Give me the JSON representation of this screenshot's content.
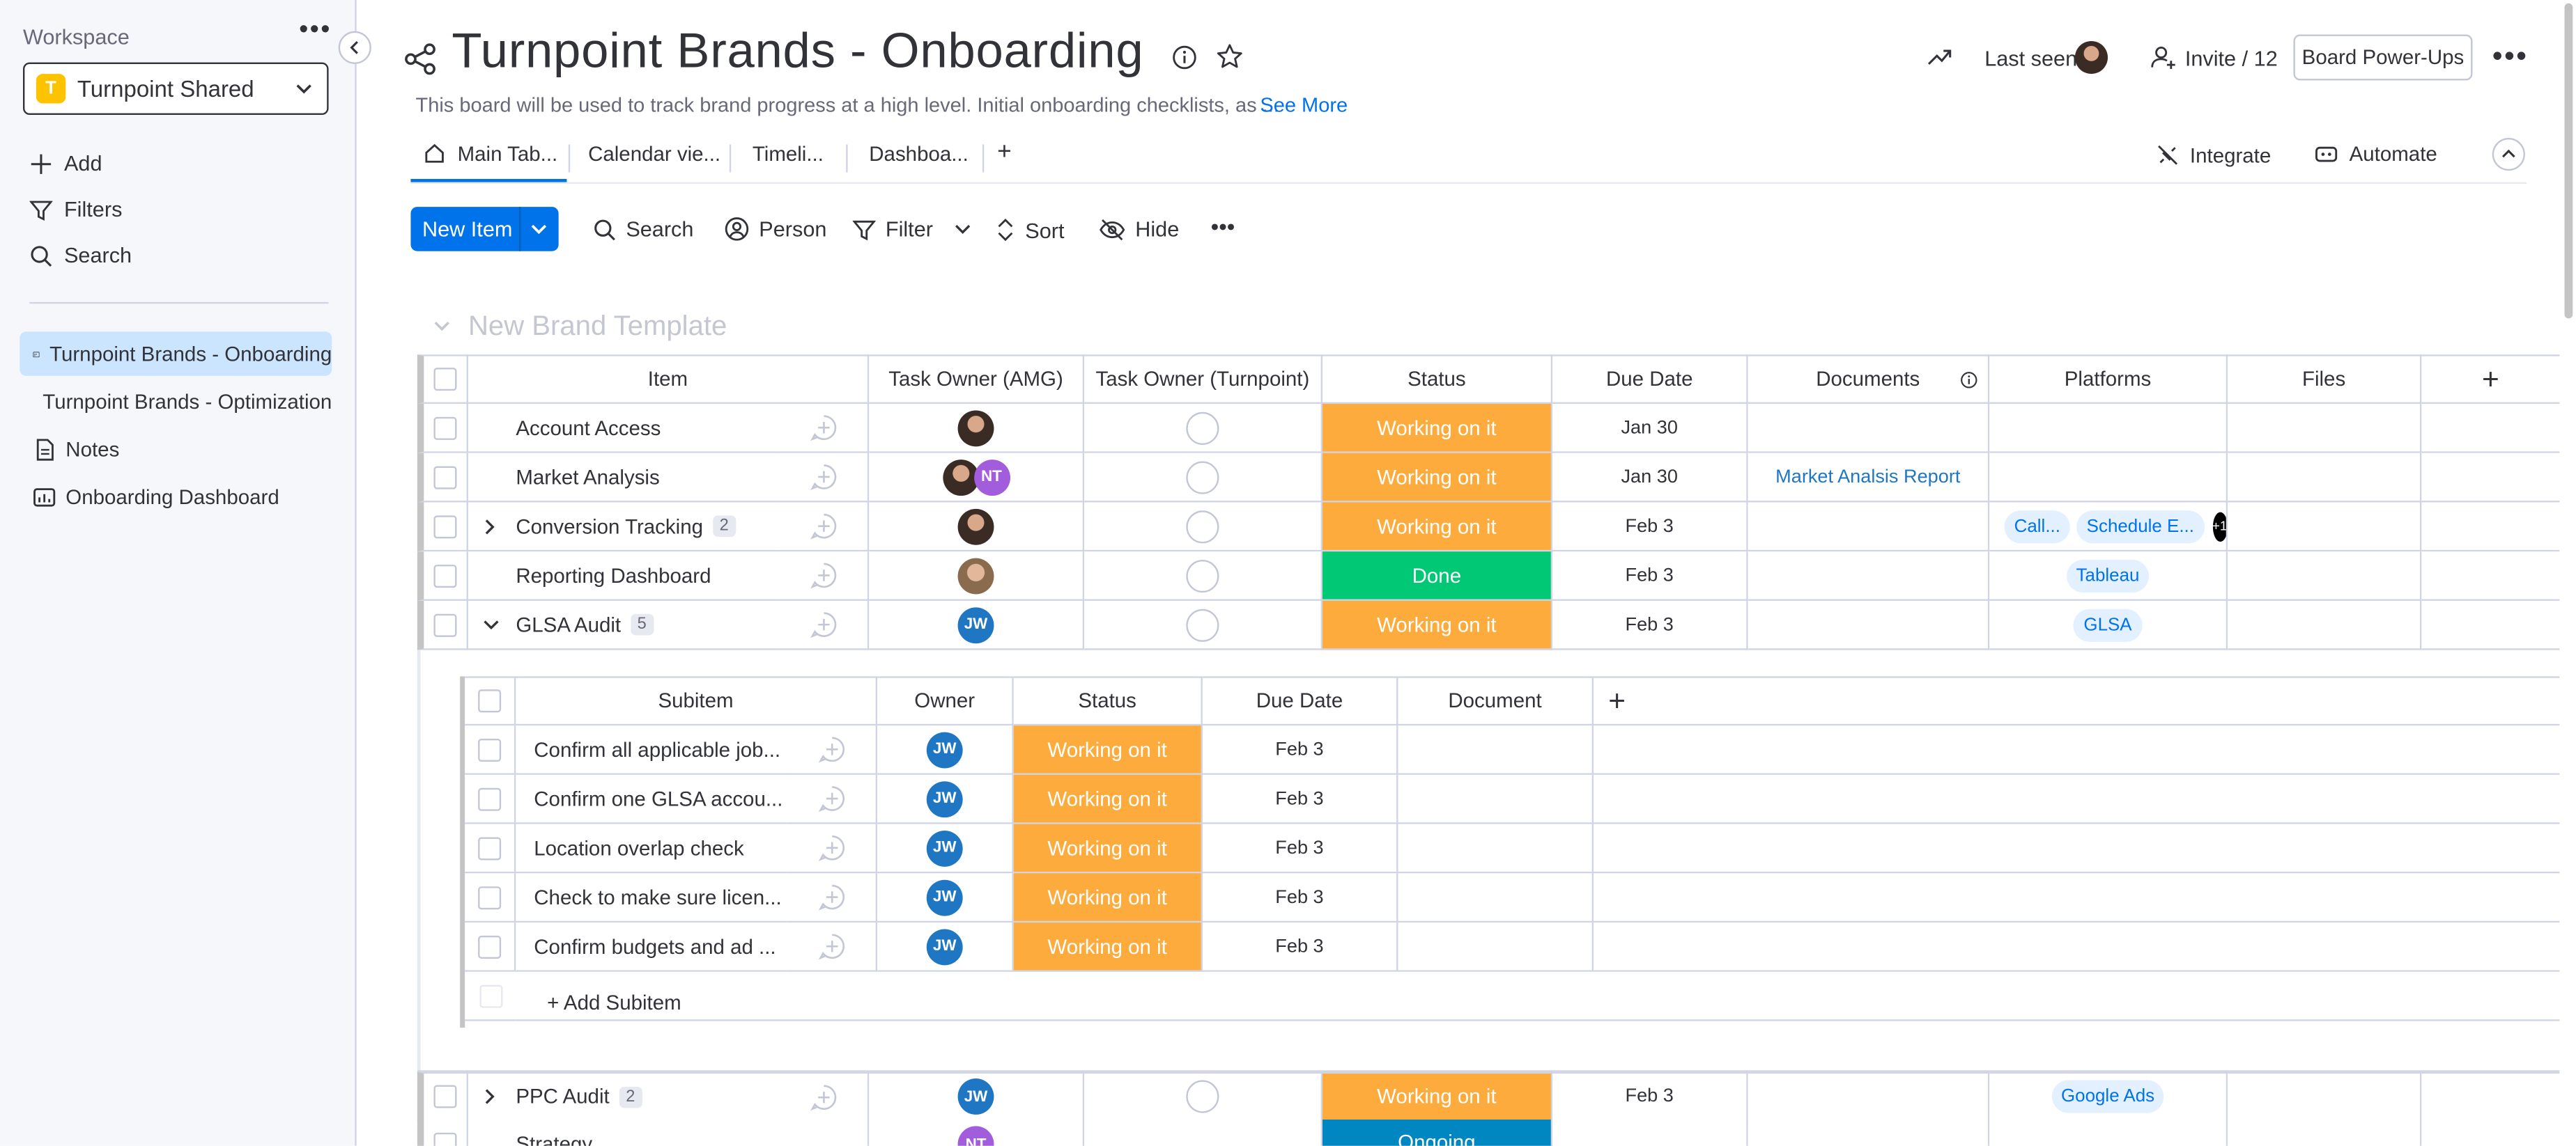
{
  "sidebar": {
    "workspace_label": "Workspace",
    "workspace_initial": "T",
    "workspace_name": "Turnpoint Shared",
    "actions": [
      {
        "label": "Add",
        "icon": "plus-icon"
      },
      {
        "label": "Filters",
        "icon": "filter-icon"
      },
      {
        "label": "Search",
        "icon": "search-icon"
      }
    ],
    "items": [
      {
        "label": "Turnpoint Brands - Onboarding",
        "icon": "board-icon",
        "active": true
      },
      {
        "label": "Turnpoint Brands - Optimization",
        "icon": "board-icon",
        "active": false
      },
      {
        "label": "Notes",
        "icon": "doc-icon",
        "active": false
      },
      {
        "label": "Onboarding Dashboard",
        "icon": "dashboard-icon",
        "active": false
      }
    ]
  },
  "header": {
    "title": "Turnpoint Brands - Onboarding",
    "description": "This board will be used to track brand progress at a high level. Initial onboarding checklists, as ...",
    "see_more": "See More",
    "last_seen": "Last seen",
    "invite": "Invite / 12",
    "power_ups": "Board Power-Ups"
  },
  "tabs": [
    {
      "label": "Main Tab..."
    },
    {
      "label": "Calendar vie..."
    },
    {
      "label": "Timeli..."
    },
    {
      "label": "Dashboa..."
    }
  ],
  "tab_add": "+",
  "integrate": "Integrate",
  "automate": "Automate",
  "toolbar": {
    "new_item": "New Item",
    "search": "Search",
    "person": "Person",
    "filter": "Filter",
    "sort": "Sort",
    "hide": "Hide"
  },
  "group": {
    "title": "New Brand Template",
    "columns": [
      "Item",
      "Task Owner (AMG)",
      "Task Owner (Turnpoint)",
      "Status",
      "Due Date",
      "Documents",
      "Platforms",
      "Files"
    ],
    "rows": [
      {
        "item": "Account Access",
        "owner": "photo",
        "status": "Working on it",
        "status_color": "#fdab3d",
        "due": "Jan 30",
        "document": "",
        "platforms": [],
        "expand": "",
        "count": ""
      },
      {
        "item": "Market Analysis",
        "owner": "photo+NT",
        "owner_initials": "NT",
        "status": "Working on it",
        "status_color": "#fdab3d",
        "due": "Jan 30",
        "document": "Market Analsis Report",
        "platforms": [],
        "expand": "",
        "count": ""
      },
      {
        "item": "Conversion Tracking",
        "owner": "photo",
        "status": "Working on it",
        "status_color": "#fdab3d",
        "due": "Feb 3",
        "document": "",
        "platforms": [
          "Call...",
          "Schedule E..."
        ],
        "platforms_more": "+1",
        "expand": "right",
        "count": "2"
      },
      {
        "item": "Reporting Dashboard",
        "owner": "photo2",
        "status": "Done",
        "status_color": "#00c875",
        "due": "Feb 3",
        "document": "",
        "platforms": [
          "Tableau"
        ],
        "expand": "",
        "count": ""
      },
      {
        "item": "GLSA Audit",
        "owner": "JW",
        "owner_initials": "JW",
        "status": "Working on it",
        "status_color": "#fdab3d",
        "due": "Feb 3",
        "document": "",
        "platforms": [
          "GLSA"
        ],
        "expand": "down",
        "count": "5"
      }
    ]
  },
  "subitems": {
    "columns": [
      "Subitem",
      "Owner",
      "Status",
      "Due Date",
      "Document"
    ],
    "rows": [
      {
        "name": "Confirm all applicable job...",
        "owner": "JW",
        "status": "Working on it",
        "due": "Feb 3"
      },
      {
        "name": "Confirm one GLSA accou...",
        "owner": "JW",
        "status": "Working on it",
        "due": "Feb 3"
      },
      {
        "name": "Location overlap check",
        "owner": "JW",
        "status": "Working on it",
        "due": "Feb 3"
      },
      {
        "name": "Check to make sure licen...",
        "owner": "JW",
        "status": "Working on it",
        "due": "Feb 3"
      },
      {
        "name": "Confirm budgets and ad ...",
        "owner": "JW",
        "status": "Working on it",
        "due": "Feb 3"
      }
    ],
    "add_label": "+ Add Subitem"
  },
  "bottom_rows": [
    {
      "item": "PPC Audit",
      "count": "2",
      "owner": "JW",
      "status": "Working on it",
      "status_color": "#fdab3d",
      "due": "Feb 3",
      "platforms": [
        "Google Ads"
      ]
    },
    {
      "item": "Strategy",
      "owner": "NT",
      "status": "Ongoing",
      "status_color": "#0086c0",
      "due": ""
    }
  ]
}
